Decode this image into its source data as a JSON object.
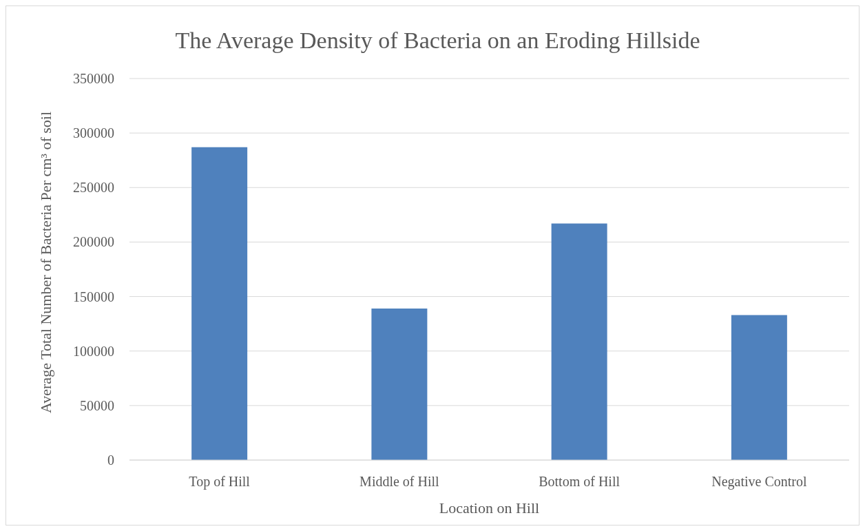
{
  "chart_data": {
    "type": "bar",
    "title": "The Average Density of Bacteria on an Eroding Hillside",
    "xlabel": "Location on Hill",
    "ylabel": "Average Total Number of Bacteria Per cm³ of soil",
    "categories": [
      "Top of Hill",
      "Middle of Hill",
      "Bottom of Hill",
      "Negative Control"
    ],
    "values": [
      287000,
      139000,
      217000,
      133000
    ],
    "color": "#4f81bd",
    "ylim": [
      0,
      350000
    ],
    "yticks": [
      0,
      50000,
      100000,
      150000,
      200000,
      250000,
      300000,
      350000
    ],
    "grid": "y"
  }
}
